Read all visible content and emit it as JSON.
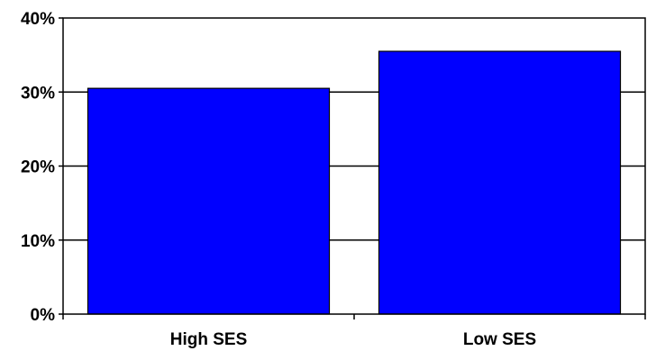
{
  "chart_data": {
    "type": "bar",
    "categories": [
      "High SES",
      "Low SES"
    ],
    "values": [
      30.5,
      35.5
    ],
    "value_format": "percent",
    "title": "",
    "xlabel": "",
    "ylabel": "",
    "ylim": [
      0,
      40
    ],
    "yticks": [
      {
        "value": 0,
        "label": "0%"
      },
      {
        "value": 10,
        "label": "10%"
      },
      {
        "value": 20,
        "label": "20%"
      },
      {
        "value": 30,
        "label": "30%"
      },
      {
        "value": 40,
        "label": "40%"
      }
    ],
    "grid": true,
    "legend": "none",
    "colors": {
      "bar_fill": "#0000ff",
      "bar_stroke": "#000000",
      "grid": "#000000",
      "plot_border": "#000000",
      "background": "#ffffff"
    }
  }
}
